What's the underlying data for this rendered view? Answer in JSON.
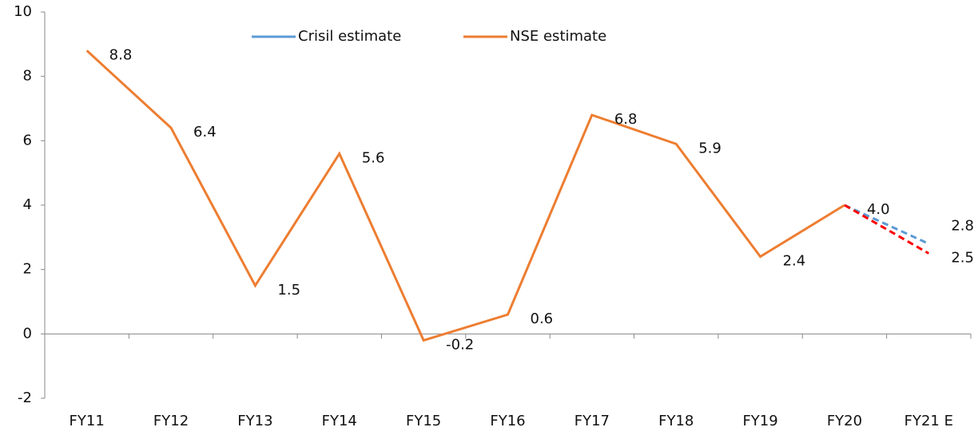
{
  "chart_data": {
    "type": "line",
    "categories": [
      "FY11",
      "FY12",
      "FY13",
      "FY14",
      "FY15",
      "FY16",
      "FY17",
      "FY18",
      "FY19",
      "FY20",
      "FY21 E"
    ],
    "series": [
      {
        "name": "Crisil estimate",
        "color": "#5b9bd5",
        "dashed_from": 9,
        "values": [
          null,
          null,
          null,
          null,
          null,
          null,
          null,
          null,
          null,
          4.0,
          2.8
        ],
        "value_labels": [
          null,
          null,
          null,
          null,
          null,
          null,
          null,
          null,
          null,
          null,
          "2.8"
        ]
      },
      {
        "name": "NSE estimate",
        "color": "#ed7d31",
        "dashed_from": 9,
        "dash_color": "#ff0000",
        "values": [
          8.8,
          6.4,
          1.5,
          5.6,
          -0.2,
          0.6,
          6.8,
          5.9,
          2.4,
          4.0,
          2.5
        ],
        "value_labels": [
          "8.8",
          "6.4",
          "1.5",
          "5.6",
          "-0.2",
          "0.6",
          "6.8",
          "5.9",
          "2.4",
          "4.0",
          "2.5"
        ]
      }
    ],
    "ylim": [
      -2,
      10
    ],
    "yticks": [
      -2,
      0,
      2,
      4,
      6,
      8,
      10
    ],
    "legend": "top"
  }
}
